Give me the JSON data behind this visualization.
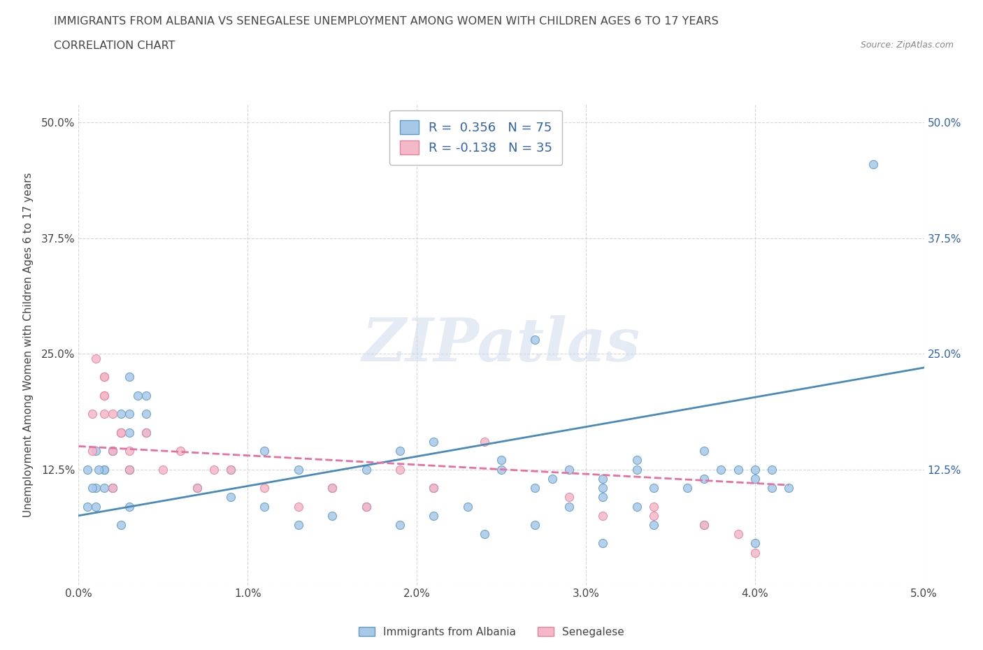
{
  "title": "IMMIGRANTS FROM ALBANIA VS SENEGALESE UNEMPLOYMENT AMONG WOMEN WITH CHILDREN AGES 6 TO 17 YEARS",
  "subtitle": "CORRELATION CHART",
  "source": "Source: ZipAtlas.com",
  "ylabel": "Unemployment Among Women with Children Ages 6 to 17 years",
  "xlim": [
    0.0,
    0.05
  ],
  "ylim": [
    0.0,
    0.52
  ],
  "xticks": [
    0.0,
    0.01,
    0.02,
    0.03,
    0.04,
    0.05
  ],
  "xtick_labels": [
    "0.0%",
    "1.0%",
    "2.0%",
    "3.0%",
    "4.0%",
    "5.0%"
  ],
  "yticks": [
    0.0,
    0.125,
    0.25,
    0.375,
    0.5
  ],
  "ytick_labels": [
    "",
    "12.5%",
    "25.0%",
    "37.5%",
    "50.0%"
  ],
  "blue_fill": "#a8c8e8",
  "blue_edge": "#5a9ac8",
  "blue_line": "#4a8ab8",
  "pink_fill": "#f4b8c8",
  "pink_edge": "#e880a0",
  "pink_line": "#e870a0",
  "blue_R": "0.356",
  "blue_N": "75",
  "pink_R": "-0.138",
  "pink_N": "35",
  "watermark": "ZIPatlas",
  "legend_label_blue": "Immigrants from Albania",
  "legend_label_pink": "Senegalese",
  "blue_scatter_x": [
    0.0005,
    0.001,
    0.0015,
    0.002,
    0.0025,
    0.003,
    0.003,
    0.002,
    0.0015,
    0.001,
    0.0005,
    0.0008,
    0.001,
    0.0012,
    0.002,
    0.0015,
    0.0025,
    0.003,
    0.0035,
    0.004,
    0.004,
    0.003,
    0.002,
    0.0025,
    0.003,
    0.004,
    0.003,
    0.007,
    0.009,
    0.011,
    0.013,
    0.015,
    0.017,
    0.019,
    0.021,
    0.023,
    0.025,
    0.027,
    0.029,
    0.031,
    0.033,
    0.021,
    0.025,
    0.028,
    0.031,
    0.034,
    0.037,
    0.039,
    0.041,
    0.027,
    0.029,
    0.031,
    0.033,
    0.036,
    0.038,
    0.04,
    0.041,
    0.037,
    0.04,
    0.042,
    0.033,
    0.034,
    0.04,
    0.037,
    0.031,
    0.027,
    0.024,
    0.021,
    0.019,
    0.017,
    0.015,
    0.013,
    0.011,
    0.047,
    0.009
  ],
  "blue_scatter_y": [
    0.085,
    0.105,
    0.125,
    0.105,
    0.065,
    0.085,
    0.125,
    0.105,
    0.125,
    0.145,
    0.125,
    0.105,
    0.085,
    0.125,
    0.145,
    0.105,
    0.165,
    0.185,
    0.205,
    0.185,
    0.165,
    0.125,
    0.145,
    0.185,
    0.165,
    0.205,
    0.225,
    0.105,
    0.125,
    0.145,
    0.125,
    0.105,
    0.125,
    0.145,
    0.105,
    0.085,
    0.125,
    0.105,
    0.085,
    0.105,
    0.125,
    0.155,
    0.135,
    0.115,
    0.095,
    0.105,
    0.115,
    0.125,
    0.125,
    0.265,
    0.125,
    0.115,
    0.135,
    0.105,
    0.125,
    0.115,
    0.105,
    0.145,
    0.125,
    0.105,
    0.085,
    0.065,
    0.045,
    0.065,
    0.045,
    0.065,
    0.055,
    0.075,
    0.065,
    0.085,
    0.075,
    0.065,
    0.085,
    0.455,
    0.095
  ],
  "pink_scatter_x": [
    0.0008,
    0.0015,
    0.0025,
    0.0015,
    0.002,
    0.003,
    0.0025,
    0.0015,
    0.001,
    0.0015,
    0.002,
    0.003,
    0.0015,
    0.002,
    0.0008,
    0.004,
    0.005,
    0.006,
    0.007,
    0.008,
    0.009,
    0.011,
    0.013,
    0.015,
    0.017,
    0.019,
    0.021,
    0.024,
    0.029,
    0.031,
    0.034,
    0.037,
    0.039,
    0.034,
    0.04
  ],
  "pink_scatter_y": [
    0.185,
    0.205,
    0.165,
    0.225,
    0.185,
    0.145,
    0.165,
    0.225,
    0.245,
    0.205,
    0.145,
    0.125,
    0.185,
    0.105,
    0.145,
    0.165,
    0.125,
    0.145,
    0.105,
    0.125,
    0.125,
    0.105,
    0.085,
    0.105,
    0.085,
    0.125,
    0.105,
    0.155,
    0.095,
    0.075,
    0.075,
    0.065,
    0.055,
    0.085,
    0.035
  ],
  "blue_trend_x": [
    0.0,
    0.05
  ],
  "blue_trend_y": [
    0.075,
    0.235
  ],
  "pink_trend_x": [
    0.0,
    0.042
  ],
  "pink_trend_y": [
    0.15,
    0.108
  ],
  "bg": "#ffffff",
  "grid_color": "#cccccc",
  "text_color": "#444444",
  "rn_color": "#3060b0"
}
